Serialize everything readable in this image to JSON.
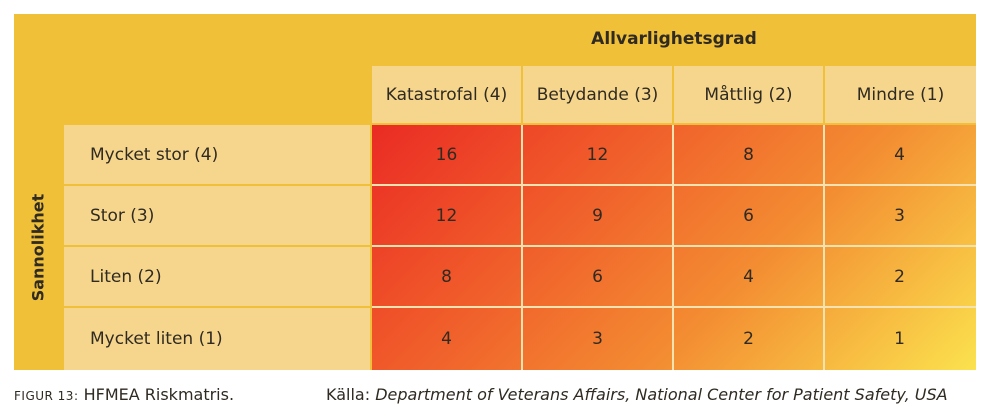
{
  "matrix": {
    "severity_title": "Allvarlighetsgrad",
    "severity_columns": [
      "Katastrofal (4)",
      "Betydande (3)",
      "Måttlig (2)",
      "Mindre (1)"
    ],
    "probability_title": "Sannolikhet",
    "probability_rows": [
      "Mycket stor (4)",
      "Stor (3)",
      "Liten (2)",
      "Mycket liten (1)"
    ],
    "values": [
      [
        "16",
        "12",
        "8",
        "4"
      ],
      [
        "12",
        "9",
        "6",
        "3"
      ],
      [
        "8",
        "6",
        "4",
        "2"
      ],
      [
        "4",
        "3",
        "2",
        "1"
      ]
    ],
    "colors": {
      "header": "#f0c038",
      "label_bg": "#f6d68c",
      "heat_high": "#ea2b24",
      "heat_mid": "#f38d32",
      "heat_low": "#fbe24e"
    }
  },
  "caption": {
    "figure_prefix": "FIGUR 13:",
    "figure_text": "HFMEA Riskmatris.",
    "source_prefix": "Källa:",
    "source_text": "Department of Veterans Affairs, National Center for Patient Safety, USA"
  }
}
